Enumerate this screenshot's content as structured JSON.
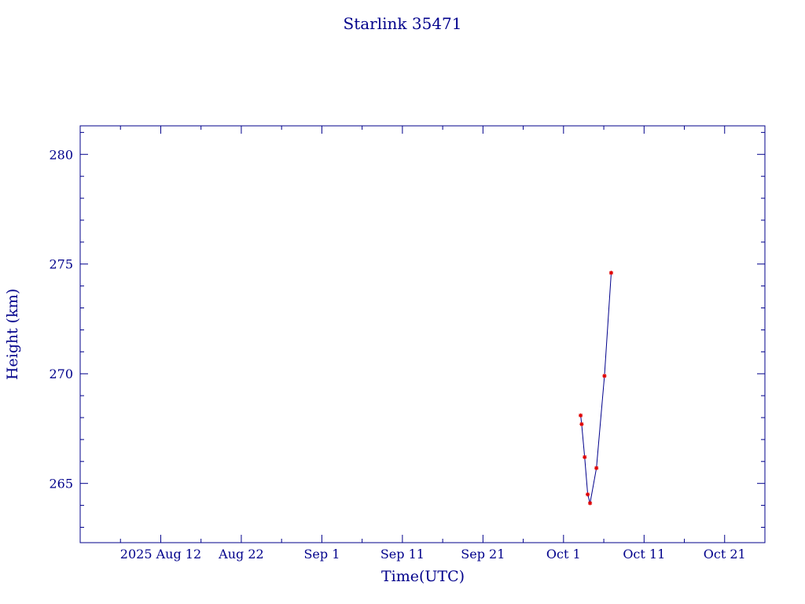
{
  "chart_data": {
    "type": "line",
    "title": "Starlink 35471",
    "xlabel": "Time(UTC)",
    "ylabel": "Height (km)",
    "x_ticks": [
      {
        "date": "2025-08-12",
        "label": "2025 Aug 12"
      },
      {
        "date": "2025-08-22",
        "label": "Aug 22"
      },
      {
        "date": "2025-09-01",
        "label": "Sep  1"
      },
      {
        "date": "2025-09-11",
        "label": "Sep 11"
      },
      {
        "date": "2025-09-21",
        "label": "Sep 21"
      },
      {
        "date": "2025-10-01",
        "label": "Oct  1"
      },
      {
        "date": "2025-10-11",
        "label": "Oct 11"
      },
      {
        "date": "2025-10-21",
        "label": "Oct 21"
      }
    ],
    "y_ticks": [
      265,
      270,
      275,
      280
    ],
    "xlim": [
      "2025-08-02T00:00",
      "2025-10-26T00:00"
    ],
    "ylim": [
      262.3,
      281.3
    ],
    "grid": false,
    "series": [
      {
        "x": [
          "2025-10-03T03:00",
          "2025-10-03T06:00",
          "2025-10-03T15:00",
          "2025-10-04T00:00",
          "2025-10-04T07:00",
          "2025-10-05T02:00",
          "2025-10-06T02:00",
          "2025-10-06T22:00"
        ],
        "y": [
          268.1,
          267.7,
          266.2,
          264.5,
          264.1,
          265.7,
          269.9,
          274.6
        ],
        "line_color": "#00008b",
        "marker_color": "#e00000"
      }
    ]
  }
}
